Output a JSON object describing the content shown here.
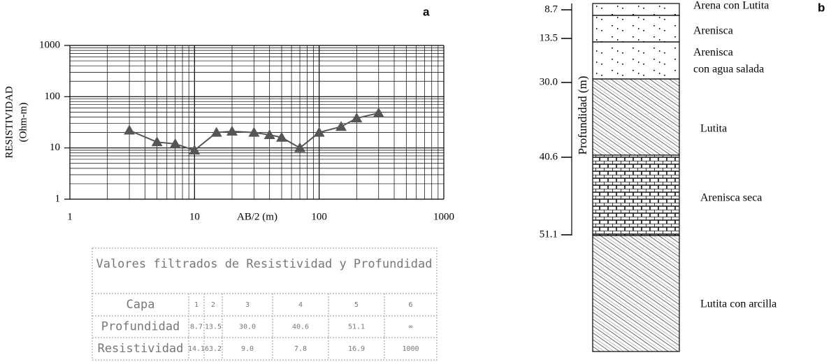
{
  "chart_data": {
    "type": "line",
    "panel": "a",
    "xlabel": "AB/2 (m)",
    "ylabel": [
      "RESISTIVIDAD",
      "(Ohm-m)"
    ],
    "x": [
      3,
      5,
      7,
      10,
      15,
      20,
      30,
      40,
      50,
      70,
      100,
      150,
      200,
      300
    ],
    "series": [
      {
        "color": "#555555",
        "values": [
          22,
          13,
          12,
          9,
          20,
          21,
          20,
          18,
          16,
          10,
          20,
          26,
          38,
          48
        ]
      }
    ],
    "xlog": true,
    "ylog": true,
    "grid": true,
    "xlim": [
      1,
      1000
    ],
    "ylim": [
      1,
      1000
    ],
    "xticks": [
      1,
      10,
      100,
      1000
    ],
    "yticks": [
      1,
      10,
      100,
      1000
    ]
  },
  "table": {
    "title": "Valores filtrados de Resistividad y Profundidad",
    "rows": [
      [
        "Capa",
        "1",
        "2",
        "3",
        "4",
        "5",
        "6"
      ],
      [
        "Profundidad",
        "8.7",
        "13.5",
        "30.0",
        "40.6",
        "51.1",
        "∞"
      ],
      [
        "Resistividad",
        "14.1",
        "63.2",
        "9.0",
        "7.8",
        "16.9",
        "1000"
      ]
    ]
  },
  "column": {
    "panel": "b",
    "axis_label": "Profundidad (m)",
    "depth_ticks": [
      8.7,
      13.5,
      {
        "value": 30,
        "label": "30.0"
      },
      40.6,
      51.1
    ],
    "layers": [
      {
        "name": [
          "Arena con Lutita"
        ],
        "pattern": "dots"
      },
      {
        "name": [
          "Arenisca"
        ],
        "pattern": "dots"
      },
      {
        "name": [
          "Arenisca",
          "con agua salada"
        ],
        "pattern": "dots"
      },
      {
        "name": [
          "Lutita"
        ],
        "pattern": "hatch"
      },
      {
        "name": [
          "Arenisca seca"
        ],
        "pattern": "brick"
      },
      {
        "name": [
          "Lutita con arcilla"
        ],
        "pattern": "hatch"
      }
    ]
  }
}
